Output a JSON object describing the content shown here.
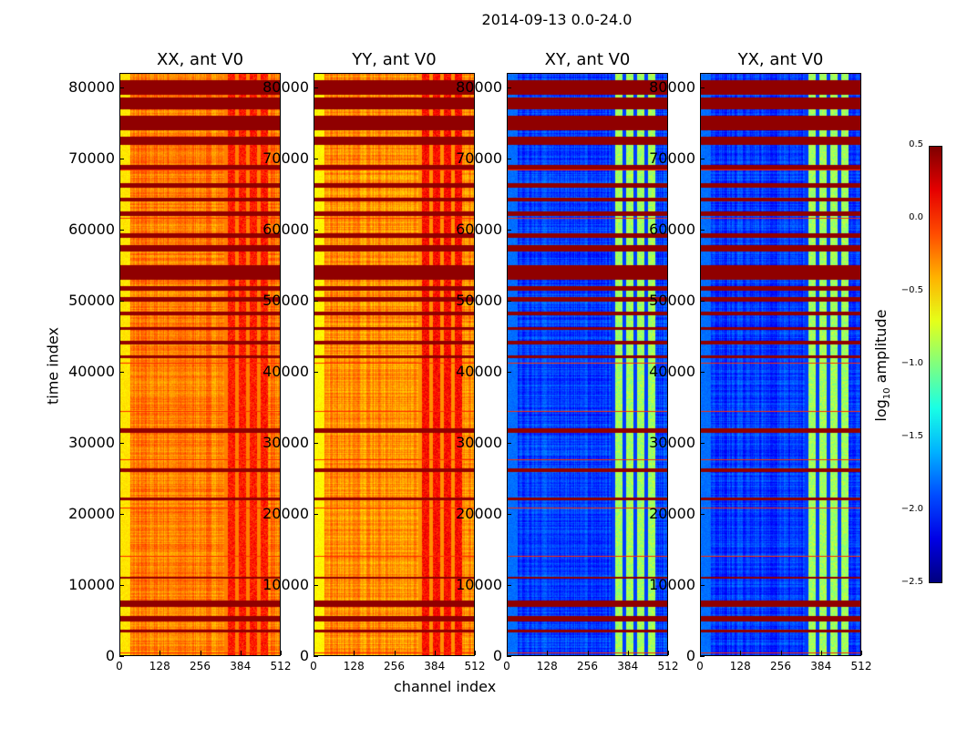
{
  "chart_data": {
    "type": "heatmap",
    "title": "2014-09-13 0.0-24.0",
    "xlabel": "channel index",
    "ylabel": "time index",
    "xlim": [
      0,
      512
    ],
    "ylim": [
      0,
      82000
    ],
    "xticks": [
      "0",
      "128",
      "256",
      "384",
      "512"
    ],
    "yticks": [
      "0",
      "10000",
      "20000",
      "30000",
      "40000",
      "50000",
      "60000",
      "70000",
      "80000"
    ],
    "colorbar": {
      "label": "log10 amplitude",
      "label_main": "log",
      "label_sub": "10",
      "label_rest": " amplitude",
      "range": [
        -2.5,
        0.5
      ],
      "ticks": [
        "0.5",
        "0.0",
        "−0.5",
        "−1.0",
        "−1.5",
        "−2.0",
        "−2.5"
      ],
      "colormap": "jet"
    },
    "panels": [
      {
        "title": "XX, ant V0",
        "base_level": -0.25,
        "edge_level": -0.55,
        "band_channels": [
          330,
          470
        ],
        "band_level": 0.05
      },
      {
        "title": "YY, ant V0",
        "base_level": -0.3,
        "edge_level": -0.6,
        "band_channels": [
          330,
          470
        ],
        "band_level": 0.1
      },
      {
        "title": "XY, ant V0",
        "base_level": -1.95,
        "edge_level": -1.8,
        "band_channels": [
          330,
          470
        ],
        "band_level": -0.9
      },
      {
        "title": "YX, ant V0",
        "base_level": -1.95,
        "edge_level": -1.8,
        "band_channels": [
          330,
          470
        ],
        "band_level": -0.9
      }
    ],
    "flagged_time_ranges": [
      [
        79000,
        81000
      ],
      [
        77000,
        78500
      ],
      [
        74000,
        76000
      ],
      [
        72000,
        73000
      ],
      [
        68500,
        69000
      ],
      [
        66000,
        66500
      ],
      [
        64000,
        64500
      ],
      [
        62000,
        62500
      ],
      [
        59000,
        59500
      ],
      [
        57000,
        57800
      ],
      [
        53000,
        55000
      ],
      [
        51500,
        52000
      ],
      [
        50000,
        50500
      ],
      [
        48000,
        48400
      ],
      [
        46000,
        46300
      ],
      [
        44000,
        44300
      ],
      [
        42000,
        42300
      ],
      [
        31500,
        32000
      ],
      [
        26000,
        26400
      ],
      [
        22000,
        22300
      ],
      [
        11000,
        11200
      ],
      [
        7000,
        7800
      ],
      [
        5000,
        5600
      ],
      [
        3500,
        3700
      ]
    ]
  }
}
